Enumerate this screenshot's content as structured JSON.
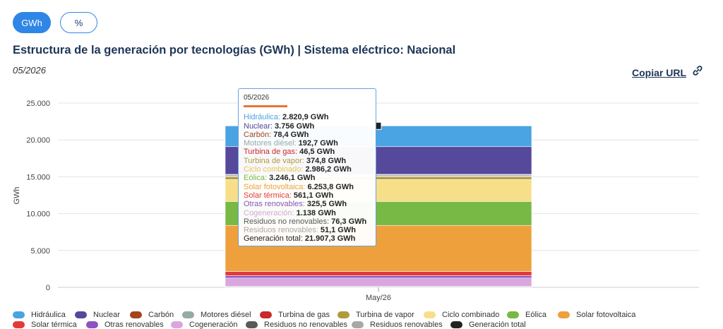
{
  "toggles": {
    "gwh_label": "GWh",
    "pct_label": "%"
  },
  "title": "Estructura de la generación por tecnologías (GWh) | Sistema eléctrico: Nacional",
  "date_label": "05/2026",
  "copy_url_label": "Copiar URL",
  "icons": {
    "copy": "link-icon"
  },
  "chart_data": {
    "type": "bar",
    "stacked": true,
    "categories": [
      "May/26"
    ],
    "ylabel": "GWh",
    "ylim": [
      0,
      25000
    ],
    "yticks": [
      0,
      5000,
      10000,
      15000,
      20000,
      25000
    ],
    "ytick_labels": [
      "0",
      "5.000",
      "10.000",
      "15.000",
      "20.000",
      "25.000"
    ],
    "grid": true,
    "legend_position": "bottom",
    "series": [
      {
        "name": "Hidráulica",
        "values": [
          2820.9
        ],
        "value_label": "2.820,9 GWh",
        "color": "#4aa3e2"
      },
      {
        "name": "Nuclear",
        "values": [
          3756
        ],
        "value_label": "3.756 GWh",
        "color": "#56489a"
      },
      {
        "name": "Carbón",
        "values": [
          78.4
        ],
        "value_label": "78,4 GWh",
        "color": "#a4441c"
      },
      {
        "name": "Motores diésel",
        "values": [
          192.7
        ],
        "value_label": "192,7 GWh",
        "color": "#97aaa6"
      },
      {
        "name": "Turbina de gas",
        "values": [
          46.5
        ],
        "value_label": "46,5 GWh",
        "color": "#c82b2b"
      },
      {
        "name": "Turbina de vapor",
        "values": [
          374.8
        ],
        "value_label": "374,8 GWh",
        "color": "#b09a3d"
      },
      {
        "name": "Ciclo combinado",
        "values": [
          2986.2
        ],
        "value_label": "2.986,2 GWh",
        "color": "#f7df8a"
      },
      {
        "name": "Eólica",
        "values": [
          3246.1
        ],
        "value_label": "3.246,1 GWh",
        "color": "#78b844"
      },
      {
        "name": "Solar fotovoltaica",
        "values": [
          6253.8
        ],
        "value_label": "6.253,8 GWh",
        "color": "#eea03c"
      },
      {
        "name": "Solar térmica",
        "values": [
          561.1
        ],
        "value_label": "561,1 GWh",
        "color": "#e23a3a"
      },
      {
        "name": "Otras renovables",
        "values": [
          325.5
        ],
        "value_label": "325,5 GWh",
        "color": "#8c54c0"
      },
      {
        "name": "Cogeneración",
        "values": [
          1138
        ],
        "value_label": "1.138 GWh",
        "color": "#d9a7dd"
      },
      {
        "name": "Residuos no renovables",
        "values": [
          76.3
        ],
        "value_label": "76,3 GWh",
        "color": "#5a5a5a"
      },
      {
        "name": "Residuos renovables",
        "values": [
          51.1
        ],
        "value_label": "51,1 GWh",
        "color": "#a8a8a8"
      }
    ],
    "total": {
      "name": "Generación total",
      "values": [
        21907.3
      ],
      "value_label": "21.907,3 GWh",
      "color": "#222222"
    },
    "tooltip_title": "05/2026"
  }
}
